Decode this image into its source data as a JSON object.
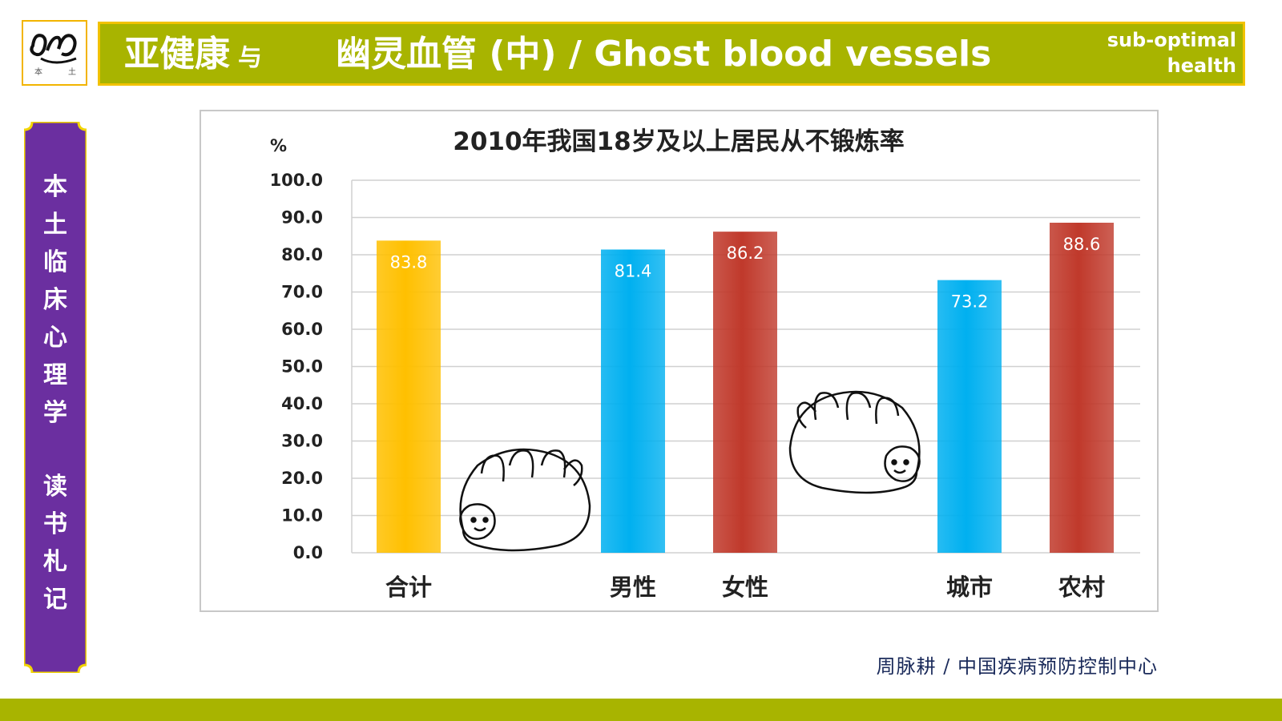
{
  "header": {
    "title_main": "亚健康",
    "title_connector": "与",
    "title_topic": "幽灵血管 (中) / Ghost blood vessels",
    "subtitle_line1": "sub-optimal",
    "subtitle_line2": "health"
  },
  "logo": {
    "icon": "calligraphy-seal-logo"
  },
  "side_banner": {
    "chars_top": [
      "本",
      "土",
      "临",
      "床",
      "心",
      "理",
      "学"
    ],
    "chars_bottom": [
      "读",
      "书",
      "札",
      "记"
    ],
    "color": "#6b2fa0",
    "border_color": "#f2d400"
  },
  "chart_data": {
    "type": "bar",
    "title": "2010年我国18岁及以上居民从不锻炼率",
    "ylabel": "%",
    "xlabel": "",
    "ylim": [
      0,
      100
    ],
    "yticks": [
      "0.0",
      "10.0",
      "20.0",
      "30.0",
      "40.0",
      "50.0",
      "60.0",
      "70.0",
      "80.0",
      "90.0",
      "100.0"
    ],
    "grid": true,
    "categories": [
      "合计",
      "男性",
      "女性",
      "城市",
      "农村"
    ],
    "values": [
      83.8,
      81.4,
      86.2,
      73.2,
      88.6
    ],
    "value_labels": [
      "83.8",
      "81.4",
      "86.2",
      "73.2",
      "88.6"
    ],
    "colors": [
      "#ffc000",
      "#00b0f0",
      "#c0392b",
      "#00b0f0",
      "#c0392b"
    ],
    "decorations": [
      "sloth-icon",
      "sloth-icon"
    ]
  },
  "footer": {
    "credit": "周脉耕 / 中国疾病预防控制中心"
  },
  "colors": {
    "accent": "#a8b400",
    "header_border": "#f2c200"
  }
}
